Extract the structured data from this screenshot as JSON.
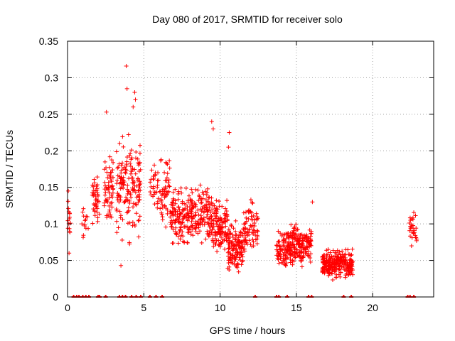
{
  "chart_data": {
    "type": "scatter",
    "title": "Day 080 of 2017, SRMTID for receiver solo",
    "xlabel": "GPS time / hours",
    "ylabel": "SRMTID / TECUs",
    "xlim": [
      0,
      24
    ],
    "ylim": [
      0,
      0.35
    ],
    "x_ticks": [
      0,
      5,
      10,
      15,
      20
    ],
    "y_ticks": [
      0,
      0.05,
      0.1,
      0.15,
      0.2,
      0.25,
      0.3,
      0.35
    ],
    "x_tick_labels": [
      "0",
      "5",
      "10",
      "15",
      "20"
    ],
    "y_tick_labels": [
      "0",
      "0.05",
      "0.1",
      "0.15",
      "0.2",
      "0.25",
      "0.3",
      "0.35"
    ],
    "grid": true,
    "marker": "+",
    "color": "#ff0000",
    "series": [
      {
        "name": "SRMTID",
        "clusters": [
          {
            "x_range": [
              0.0,
              0.2
            ],
            "y_range": [
              0.06,
              0.145
            ],
            "n": 14,
            "outliers": [
              [
                0.05,
                0.145
              ],
              [
                0.1,
                0.06
              ]
            ]
          },
          {
            "x_range": [
              0.9,
              1.4
            ],
            "y_range": [
              0.06,
              0.14
            ],
            "n": 14
          },
          {
            "x_range": [
              1.6,
              2.1
            ],
            "y_range": [
              0.09,
              0.175
            ],
            "n": 45
          },
          {
            "x_range": [
              2.4,
              3.0
            ],
            "y_range": [
              0.09,
              0.21
            ],
            "n": 60,
            "outliers": [
              [
                2.55,
                0.253
              ]
            ]
          },
          {
            "x_range": [
              3.2,
              4.8
            ],
            "y_range": [
              0.06,
              0.24
            ],
            "n": 160,
            "outliers": [
              [
                3.85,
                0.316
              ],
              [
                3.9,
                0.285
              ],
              [
                4.4,
                0.28
              ],
              [
                4.45,
                0.27
              ],
              [
                4.3,
                0.26
              ],
              [
                3.5,
                0.043
              ]
            ]
          },
          {
            "x_range": [
              5.4,
              5.8
            ],
            "y_range": [
              0.12,
              0.195
            ],
            "n": 20
          },
          {
            "x_range": [
              5.8,
              6.7
            ],
            "y_range": [
              0.08,
              0.21
            ],
            "n": 60
          },
          {
            "x_range": [
              6.7,
              8.0
            ],
            "y_range": [
              0.06,
              0.16
            ],
            "n": 130
          },
          {
            "x_range": [
              8.0,
              9.5
            ],
            "y_range": [
              0.06,
              0.16
            ],
            "n": 150
          },
          {
            "x_range": [
              9.5,
              10.5
            ],
            "y_range": [
              0.04,
              0.15
            ],
            "n": 120,
            "outliers": [
              [
                9.45,
                0.24
              ],
              [
                9.55,
                0.23
              ],
              [
                10.6,
                0.225
              ],
              [
                10.55,
                0.205
              ]
            ]
          },
          {
            "x_range": [
              10.5,
              11.5
            ],
            "y_range": [
              0.02,
              0.11
            ],
            "n": 140
          },
          {
            "x_range": [
              11.5,
              12.5
            ],
            "y_range": [
              0.05,
              0.14
            ],
            "n": 80
          },
          {
            "x_range": [
              13.7,
              14.4
            ],
            "y_range": [
              0.03,
              0.1
            ],
            "n": 70
          },
          {
            "x_range": [
              14.4,
              15.5
            ],
            "y_range": [
              0.03,
              0.11
            ],
            "n": 160
          },
          {
            "x_range": [
              15.5,
              16.0
            ],
            "y_range": [
              0.04,
              0.11
            ],
            "n": 50,
            "outliers": [
              [
                16.05,
                0.13
              ]
            ]
          },
          {
            "x_range": [
              16.7,
              17.5
            ],
            "y_range": [
              0.02,
              0.07
            ],
            "n": 120
          },
          {
            "x_range": [
              17.5,
              18.7
            ],
            "y_range": [
              0.02,
              0.07
            ],
            "n": 160
          },
          {
            "x_range": [
              22.4,
              22.9
            ],
            "y_range": [
              0.06,
              0.13
            ],
            "n": 30
          }
        ]
      }
    ],
    "zero_ticks_x": [
      0.4,
      0.6,
      0.75,
      1.0,
      1.2,
      1.4,
      2.0,
      2.1,
      2.5,
      3.4,
      3.6,
      3.8,
      4.2,
      4.5,
      4.8,
      5.4,
      5.8,
      6.2,
      12.3,
      13.7,
      13.85,
      14.4,
      15.8,
      16.0,
      18.1,
      18.6,
      22.3,
      22.45,
      22.7
    ]
  }
}
